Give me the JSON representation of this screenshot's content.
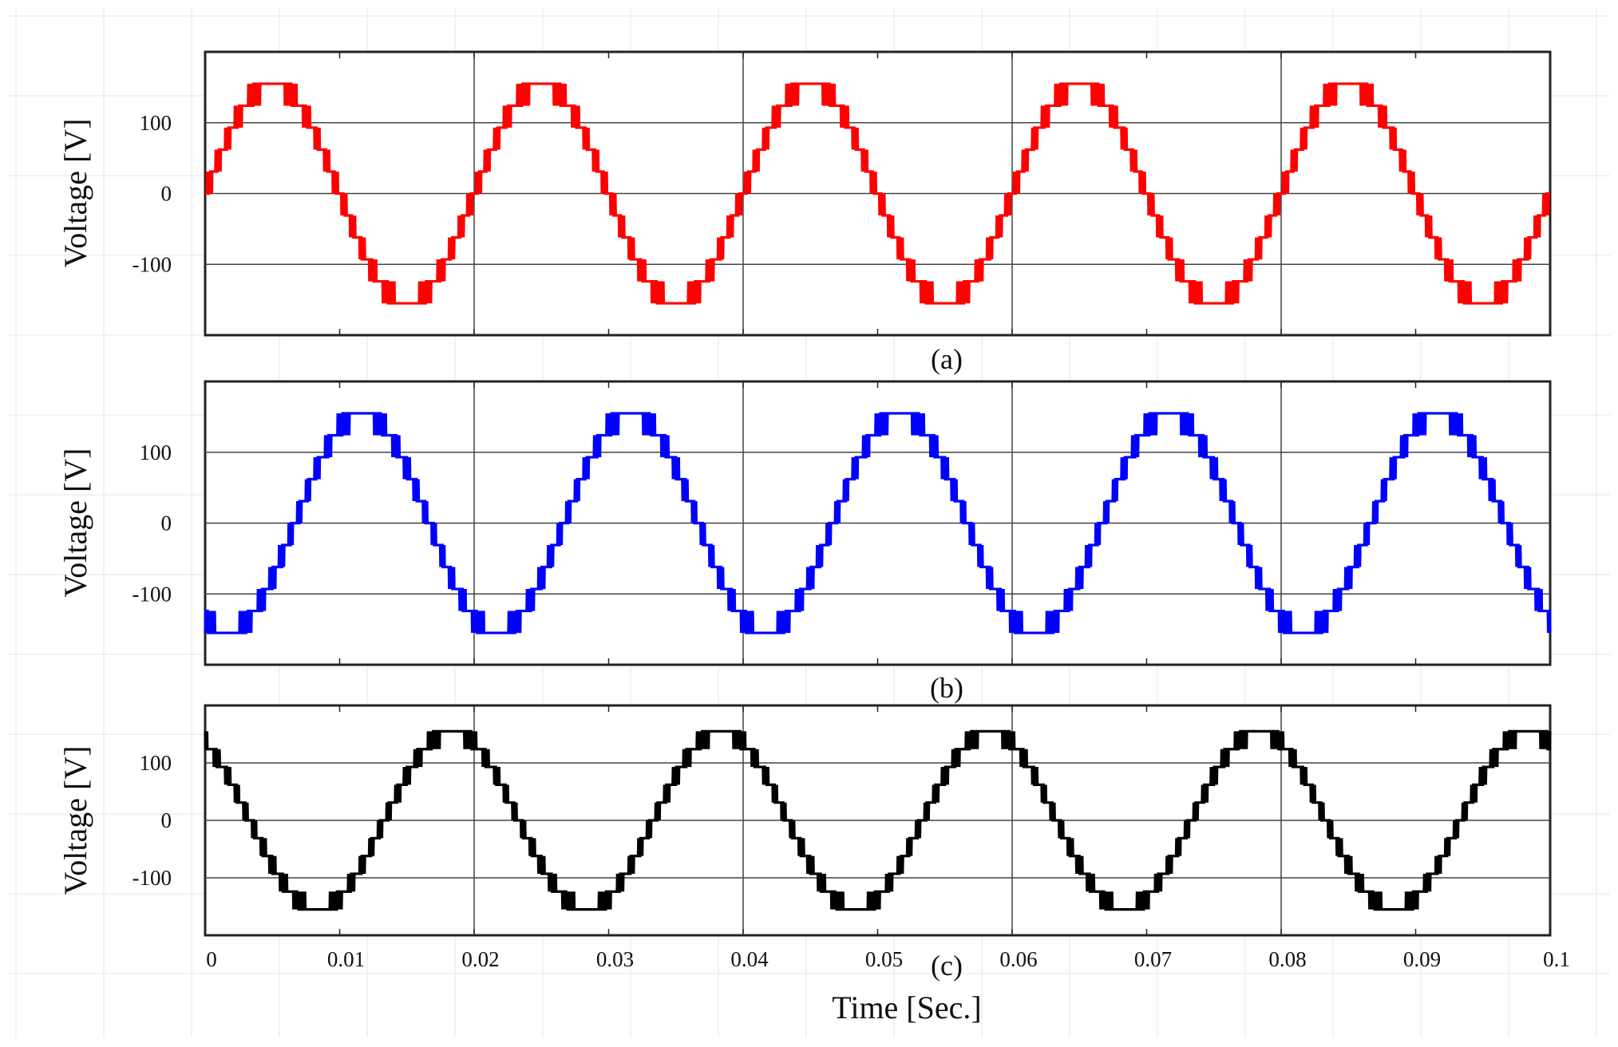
{
  "chart_data": [
    {
      "type": "line",
      "caption": "(a)",
      "ylabel": "Voltage [V]",
      "color": "#ff0000",
      "frequency_hz": 50,
      "phase_shift_deg": 0,
      "amplitude_v": 155,
      "voltage_levels": [
        -155,
        -124,
        -93,
        -62,
        -31,
        0,
        31,
        62,
        93,
        124,
        155
      ],
      "xlim": [
        0,
        0.1
      ],
      "ylim": [
        -200,
        200
      ],
      "yticks": [
        {
          "value": 100,
          "label": "100"
        },
        {
          "value": 0,
          "label": "0"
        },
        {
          "value": -100,
          "label": "-100"
        }
      ],
      "grid": true
    },
    {
      "type": "line",
      "caption": "(b)",
      "ylabel": "Voltage [V]",
      "color": "#0000ff",
      "frequency_hz": 50,
      "phase_shift_deg": -120,
      "amplitude_v": 155,
      "voltage_levels": [
        -155,
        -124,
        -93,
        -62,
        -31,
        0,
        31,
        62,
        93,
        124,
        155
      ],
      "xlim": [
        0,
        0.1
      ],
      "ylim": [
        -200,
        200
      ],
      "yticks": [
        {
          "value": 100,
          "label": "100"
        },
        {
          "value": 0,
          "label": "0"
        },
        {
          "value": -100,
          "label": "-100"
        }
      ],
      "grid": true
    },
    {
      "type": "line",
      "caption": "(c)",
      "ylabel": "Voltage [V]",
      "color": "#000000",
      "frequency_hz": 50,
      "phase_shift_deg": 120,
      "amplitude_v": 155,
      "voltage_levels": [
        -155,
        -124,
        -93,
        -62,
        -31,
        0,
        31,
        62,
        93,
        124,
        155
      ],
      "xlim": [
        0,
        0.1
      ],
      "ylim": [
        -200,
        200
      ],
      "yticks": [
        {
          "value": 100,
          "label": "100"
        },
        {
          "value": 0,
          "label": "0"
        },
        {
          "value": -100,
          "label": "-100"
        }
      ],
      "grid": true
    }
  ],
  "x_axis": {
    "label": "Time [Sec.]",
    "ticks": [
      {
        "value": 0,
        "label": "0"
      },
      {
        "value": 0.01,
        "label": "0.01"
      },
      {
        "value": 0.02,
        "label": "0.02"
      },
      {
        "value": 0.03,
        "label": "0.03"
      },
      {
        "value": 0.04,
        "label": "0.04"
      },
      {
        "value": 0.05,
        "label": "0.05"
      },
      {
        "value": 0.06,
        "label": "0.06"
      },
      {
        "value": 0.07,
        "label": "0.07"
      },
      {
        "value": 0.08,
        "label": "0.08"
      },
      {
        "value": 0.09,
        "label": "0.09"
      },
      {
        "value": 0.1,
        "label": "0.1"
      }
    ]
  }
}
